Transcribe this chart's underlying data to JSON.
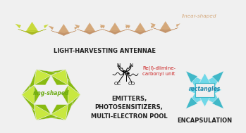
{
  "bg_color": "#f0f0f0",
  "light_harvesting_label": "LIGHT-HARVESTING ANTENNAE",
  "linear_shaped_label": "linear-shaped",
  "ring_shaped_label": "ring-shaped",
  "emitters_label": "EMITTERS,\nPHOTOSENSITIZERS,\nMULTI-ELECTRON POOL",
  "rectangles_label": "rectangles",
  "encapsulation_label": "ENCAPSULATION",
  "rhenium_label": "Re(I)-diimine-\ncarbonyl unit",
  "crane_color_yellow": "#c8d93a",
  "crane_color_tan": "#d4a87a",
  "crane_color_tan_dark": "#c4946a",
  "ring_color_light": "#c8e840",
  "ring_color_dark": "#88bb10",
  "rect_color_light": "#70d8e8",
  "rect_color_dark": "#40b8c8",
  "label_color_main": "#222222",
  "label_color_red": "#cc2222",
  "label_color_ring": "#6aaa10",
  "label_color_rect": "#2288aa"
}
